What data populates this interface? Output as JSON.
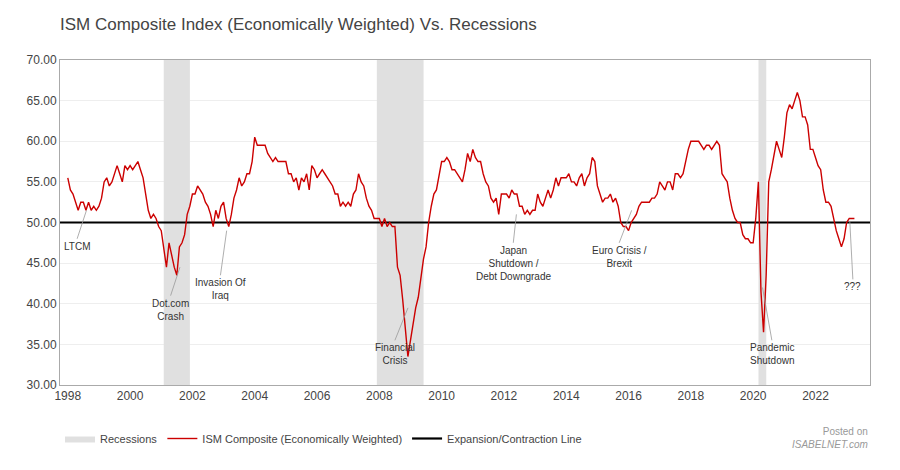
{
  "chart_data": {
    "type": "line",
    "title": "ISM Composite Index (Economically Weighted) Vs. Recessions",
    "x": [
      1998.0,
      1998.083,
      1998.167,
      1998.25,
      1998.333,
      1998.417,
      1998.5,
      1998.583,
      1998.667,
      1998.75,
      1998.833,
      1998.917,
      1999.0,
      1999.083,
      1999.167,
      1999.25,
      1999.333,
      1999.417,
      1999.5,
      1999.583,
      1999.667,
      1999.75,
      1999.833,
      1999.917,
      2000.0,
      2000.083,
      2000.167,
      2000.25,
      2000.333,
      2000.417,
      2000.5,
      2000.583,
      2000.667,
      2000.75,
      2000.833,
      2000.917,
      2001.0,
      2001.083,
      2001.167,
      2001.25,
      2001.333,
      2001.417,
      2001.5,
      2001.583,
      2001.667,
      2001.75,
      2001.833,
      2001.917,
      2002.0,
      2002.083,
      2002.167,
      2002.25,
      2002.333,
      2002.417,
      2002.5,
      2002.583,
      2002.667,
      2002.75,
      2002.833,
      2002.917,
      2003.0,
      2003.083,
      2003.167,
      2003.25,
      2003.333,
      2003.417,
      2003.5,
      2003.583,
      2003.667,
      2003.75,
      2003.833,
      2003.917,
      2004.0,
      2004.083,
      2004.167,
      2004.25,
      2004.333,
      2004.417,
      2004.5,
      2004.583,
      2004.667,
      2004.75,
      2004.833,
      2004.917,
      2005.0,
      2005.083,
      2005.167,
      2005.25,
      2005.333,
      2005.417,
      2005.5,
      2005.583,
      2005.667,
      2005.75,
      2005.833,
      2005.917,
      2006.0,
      2006.083,
      2006.167,
      2006.25,
      2006.333,
      2006.417,
      2006.5,
      2006.583,
      2006.667,
      2006.75,
      2006.833,
      2006.917,
      2007.0,
      2007.083,
      2007.167,
      2007.25,
      2007.333,
      2007.417,
      2007.5,
      2007.583,
      2007.667,
      2007.75,
      2007.833,
      2007.917,
      2008.0,
      2008.083,
      2008.167,
      2008.25,
      2008.333,
      2008.417,
      2008.5,
      2008.583,
      2008.667,
      2008.75,
      2008.833,
      2008.917,
      2009.0,
      2009.083,
      2009.167,
      2009.25,
      2009.333,
      2009.417,
      2009.5,
      2009.583,
      2009.667,
      2009.75,
      2009.833,
      2009.917,
      2010.0,
      2010.083,
      2010.167,
      2010.25,
      2010.333,
      2010.417,
      2010.5,
      2010.583,
      2010.667,
      2010.75,
      2010.833,
      2010.917,
      2011.0,
      2011.083,
      2011.167,
      2011.25,
      2011.333,
      2011.417,
      2011.5,
      2011.583,
      2011.667,
      2011.75,
      2011.833,
      2011.917,
      2012.0,
      2012.083,
      2012.167,
      2012.25,
      2012.333,
      2012.417,
      2012.5,
      2012.583,
      2012.667,
      2012.75,
      2012.833,
      2012.917,
      2013.0,
      2013.083,
      2013.167,
      2013.25,
      2013.333,
      2013.417,
      2013.5,
      2013.583,
      2013.667,
      2013.75,
      2013.833,
      2013.917,
      2014.0,
      2014.083,
      2014.167,
      2014.25,
      2014.333,
      2014.417,
      2014.5,
      2014.583,
      2014.667,
      2014.75,
      2014.833,
      2014.917,
      2015.0,
      2015.083,
      2015.167,
      2015.25,
      2015.333,
      2015.417,
      2015.5,
      2015.583,
      2015.667,
      2015.75,
      2015.833,
      2015.917,
      2016.0,
      2016.083,
      2016.167,
      2016.25,
      2016.333,
      2016.417,
      2016.5,
      2016.583,
      2016.667,
      2016.75,
      2016.833,
      2016.917,
      2017.0,
      2017.083,
      2017.167,
      2017.25,
      2017.333,
      2017.417,
      2017.5,
      2017.583,
      2017.667,
      2017.75,
      2017.833,
      2017.917,
      2018.0,
      2018.083,
      2018.167,
      2018.25,
      2018.333,
      2018.417,
      2018.5,
      2018.583,
      2018.667,
      2018.75,
      2018.833,
      2018.917,
      2019.0,
      2019.083,
      2019.167,
      2019.25,
      2019.333,
      2019.417,
      2019.5,
      2019.583,
      2019.667,
      2019.75,
      2019.833,
      2019.917,
      2020.0,
      2020.083,
      2020.167,
      2020.25,
      2020.333,
      2020.417,
      2020.5,
      2020.583,
      2020.667,
      2020.75,
      2020.833,
      2020.917,
      2021.0,
      2021.083,
      2021.167,
      2021.25,
      2021.333,
      2021.417,
      2021.5,
      2021.583,
      2021.667,
      2021.75,
      2021.833,
      2021.917,
      2022.0,
      2022.083,
      2022.167,
      2022.25,
      2022.333,
      2022.417,
      2022.5,
      2022.583,
      2022.667,
      2022.75,
      2022.833,
      2022.917,
      2023.0,
      2023.083,
      2023.167,
      2023.25
    ],
    "series": [
      {
        "name": "ISM Composite (Economically Weighted)",
        "color": "#cc0000",
        "values": [
          55.5,
          54.0,
          53.5,
          52.5,
          51.5,
          52.5,
          52.5,
          51.5,
          52.5,
          51.5,
          52.0,
          51.5,
          52.0,
          53.0,
          55.0,
          55.5,
          54.5,
          55.0,
          56.0,
          57.0,
          56.0,
          55.0,
          57.0,
          56.5,
          57.0,
          56.5,
          57.0,
          57.5,
          56.5,
          55.5,
          53.5,
          51.5,
          50.5,
          51.0,
          50.5,
          49.5,
          49.0,
          46.5,
          44.5,
          47.5,
          46.0,
          44.5,
          43.5,
          47.0,
          47.5,
          48.5,
          51.0,
          52.0,
          53.5,
          53.5,
          54.5,
          54.0,
          53.5,
          52.5,
          52.0,
          51.0,
          49.5,
          51.5,
          50.5,
          52.0,
          52.5,
          50.5,
          49.5,
          51.0,
          53.0,
          54.0,
          55.5,
          54.5,
          55.0,
          56.0,
          56.0,
          57.5,
          60.5,
          59.5,
          59.5,
          59.5,
          59.5,
          58.5,
          58.0,
          57.5,
          58.0,
          57.5,
          57.5,
          57.5,
          57.5,
          56.0,
          56.0,
          55.0,
          55.5,
          54.0,
          55.5,
          55.0,
          56.0,
          54.0,
          57.0,
          56.5,
          55.5,
          56.0,
          56.5,
          56.0,
          55.5,
          55.0,
          54.5,
          53.5,
          53.5,
          52.0,
          52.5,
          52.0,
          52.5,
          52.0,
          53.5,
          54.0,
          56.0,
          55.0,
          54.5,
          53.0,
          52.0,
          51.5,
          50.5,
          50.5,
          50.5,
          49.5,
          50.5,
          49.5,
          50.0,
          49.5,
          49.5,
          44.5,
          43.5,
          40.5,
          36.5,
          33.5,
          35.5,
          37.5,
          39.5,
          40.8,
          43.5,
          45.5,
          47.0,
          50.0,
          52.0,
          53.5,
          54.0,
          56.0,
          57.5,
          57.5,
          58.0,
          57.5,
          56.5,
          56.5,
          56.0,
          55.5,
          55.0,
          56.5,
          58.5,
          57.5,
          59.0,
          58.0,
          57.5,
          57.5,
          56.0,
          55.0,
          54.5,
          53.0,
          52.5,
          53.0,
          51.0,
          53.5,
          53.5,
          53.5,
          53.0,
          54.0,
          53.5,
          53.5,
          52.0,
          52.0,
          51.0,
          51.5,
          51.0,
          51.5,
          51.5,
          53.5,
          52.5,
          52.0,
          53.0,
          54.0,
          53.0,
          54.0,
          55.5,
          54.5,
          55.5,
          55.5,
          55.5,
          56.0,
          55.0,
          55.0,
          54.5,
          55.5,
          56.0,
          54.5,
          55.5,
          56.0,
          58.0,
          57.5,
          54.5,
          53.5,
          52.5,
          53.0,
          53.0,
          53.5,
          52.5,
          53.0,
          52.0,
          50.0,
          49.5,
          49.5,
          49.0,
          50.0,
          50.5,
          51.0,
          52.0,
          52.5,
          52.5,
          52.5,
          52.5,
          53.0,
          53.0,
          53.5,
          55.0,
          54.5,
          54.0,
          55.0,
          55.0,
          54.0,
          56.0,
          56.0,
          55.5,
          56.0,
          57.5,
          59.0,
          60.0,
          60.0,
          60.0,
          60.0,
          59.5,
          59.0,
          59.5,
          59.5,
          59.0,
          59.5,
          60.0,
          59.5,
          56.0,
          55.5,
          55.0,
          53.0,
          51.5,
          50.5,
          50.0,
          50.0,
          48.5,
          48.0,
          48.0,
          47.5,
          47.5,
          50.5,
          55.0,
          41.5,
          36.5,
          43.5,
          55.0,
          56.5,
          58.5,
          60.0,
          59.0,
          58.0,
          60.5,
          63.5,
          64.5,
          64.0,
          65.0,
          66.0,
          65.0,
          63.0,
          63.0,
          62.0,
          59.0,
          59.0,
          58.0,
          57.0,
          56.5,
          54.0,
          52.5,
          52.5,
          52.0,
          50.5,
          49.0,
          48.0,
          47.0,
          48.0,
          50.0,
          50.5,
          50.5,
          50.5
        ]
      }
    ],
    "xlim": [
      1997.75,
      2023.75
    ],
    "xticks": [
      1998,
      2000,
      2002,
      2004,
      2006,
      2008,
      2010,
      2012,
      2014,
      2016,
      2018,
      2020,
      2022
    ],
    "ylim": [
      30.0,
      70.0
    ],
    "yticks": [
      {
        "value": 30.0,
        "label": "30.00"
      },
      {
        "value": 35.0,
        "label": "35.00"
      },
      {
        "value": 40.0,
        "label": "40.00"
      },
      {
        "value": 45.0,
        "label": "45.00"
      },
      {
        "value": 50.0,
        "label": "50.00"
      },
      {
        "value": 55.0,
        "label": "55.00"
      },
      {
        "value": 60.0,
        "label": "60.00"
      },
      {
        "value": 65.0,
        "label": "65.00"
      },
      {
        "value": 70.0,
        "label": "70.00"
      }
    ],
    "grid": "y",
    "legend": "bottom",
    "recessions": {
      "name": "Recessions",
      "color": "#e0e0e0",
      "periods": [
        [
          2001.08,
          2001.92
        ],
        [
          2007.92,
          2009.42
        ],
        [
          2020.17,
          2020.42
        ]
      ]
    },
    "reference_line": {
      "name": "Expansion/Contraction Line",
      "color": "#000000",
      "value": 50.0
    },
    "annotations": [
      {
        "text": "LTCM",
        "x": 1998.3,
        "y": 48.0,
        "ax": 1998.6,
        "ay": 51.5
      },
      {
        "text": "Dot.com\nCrash",
        "x": 2001.3,
        "y": 41.0,
        "ax": 2001.6,
        "ay": 44.5
      },
      {
        "text": "Invasion Of\nIraq",
        "x": 2002.9,
        "y": 43.5,
        "ax": 2003.1,
        "ay": 49.0
      },
      {
        "text": "Financial\nCrisis",
        "x": 2008.5,
        "y": 35.5,
        "ax": 2008.92,
        "ay": 39.5
      },
      {
        "text": "Japan\nShutdown /\nDebt Downgrade",
        "x": 2012.3,
        "y": 47.5,
        "ax": 2012.4,
        "ay": 51.0
      },
      {
        "text": "Euro Crisis /\nBrexit",
        "x": 2015.7,
        "y": 47.5,
        "ax": 2016.1,
        "ay": 51.5
      },
      {
        "text": "Pandemic\nShutdown",
        "x": 2020.6,
        "y": 35.5,
        "ax": 2020.3,
        "ay": 42.0
      },
      {
        "text": "???",
        "x": 2023.2,
        "y": 43.0,
        "ax": 2023.1,
        "ay": 50.2
      }
    ],
    "watermark": [
      "Posted on",
      "ISABELNET.com"
    ]
  }
}
